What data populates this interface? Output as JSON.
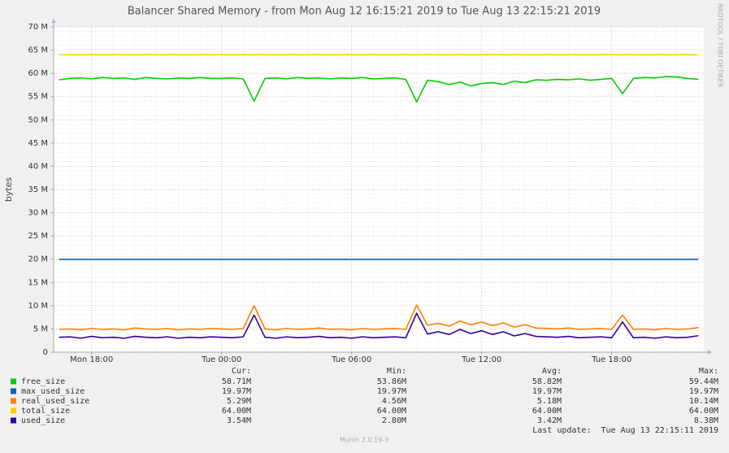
{
  "chart_data": {
    "type": "line",
    "title": "Balancer Shared Memory - from Mon Aug 12 16:15:21 2019 to Tue Aug 13 22:15:21 2019",
    "y_label": "bytes",
    "side_text": "RRDTOOL / TOBI OETIKER",
    "xlim": [
      "Mon 16:15",
      "Tue 22:15"
    ],
    "xticks": [
      "Mon 18:00",
      "Tue 00:00",
      "Tue 06:00",
      "Tue 12:00",
      "Tue 18:00"
    ],
    "ylim": [
      0,
      70
    ],
    "yticks": [
      0,
      {
        "value": 5,
        "label": "5 M"
      },
      {
        "value": 10,
        "label": "10 M"
      },
      {
        "value": 15,
        "label": "15 M"
      },
      {
        "value": 20,
        "label": "20 M"
      },
      {
        "value": 25,
        "label": "25 M"
      },
      {
        "value": 30,
        "label": "30 M"
      },
      {
        "value": 35,
        "label": "35 M"
      },
      {
        "value": 40,
        "label": "40 M"
      },
      {
        "value": 45,
        "label": "45 M"
      },
      {
        "value": 50,
        "label": "50 M"
      },
      {
        "value": 55,
        "label": "55 M"
      },
      {
        "value": 60,
        "label": "60 M"
      },
      {
        "value": 65,
        "label": "65 M"
      },
      {
        "value": 70,
        "label": "70 M"
      }
    ],
    "grid": true,
    "x": [
      "Mon 16:30",
      "Mon 17:00",
      "Mon 17:30",
      "Mon 18:00",
      "Mon 18:30",
      "Mon 19:00",
      "Mon 19:30",
      "Mon 20:00",
      "Mon 20:30",
      "Mon 21:00",
      "Mon 21:30",
      "Mon 22:00",
      "Mon 22:30",
      "Mon 23:00",
      "Mon 23:30",
      "Tue 00:00",
      "Tue 00:30",
      "Tue 01:00",
      "Tue 01:30",
      "Tue 02:00",
      "Tue 02:30",
      "Tue 03:00",
      "Tue 03:30",
      "Tue 04:00",
      "Tue 04:30",
      "Tue 05:00",
      "Tue 05:30",
      "Tue 06:00",
      "Tue 06:30",
      "Tue 07:00",
      "Tue 07:30",
      "Tue 08:00",
      "Tue 08:30",
      "Tue 09:00",
      "Tue 09:30",
      "Tue 10:00",
      "Tue 10:30",
      "Tue 11:00",
      "Tue 11:30",
      "Tue 12:00",
      "Tue 12:30",
      "Tue 13:00",
      "Tue 13:30",
      "Tue 14:00",
      "Tue 14:30",
      "Tue 15:00",
      "Tue 15:30",
      "Tue 16:00",
      "Tue 16:30",
      "Tue 17:00",
      "Tue 17:30",
      "Tue 18:00",
      "Tue 18:30",
      "Tue 19:00",
      "Tue 19:30",
      "Tue 20:00",
      "Tue 20:30",
      "Tue 21:00",
      "Tue 21:30",
      "Tue 22:00"
    ],
    "stat_headers": [
      "Cur:",
      "Min:",
      "Avg:",
      "Max:"
    ],
    "series": [
      {
        "name": "free_size",
        "color": "#00cc00",
        "stats": [
          "58.71M",
          "53.86M",
          "58.82M",
          "59.44M"
        ],
        "values": [
          58.6,
          58.9,
          59.0,
          58.8,
          59.1,
          58.9,
          59.0,
          58.7,
          59.1,
          58.9,
          58.8,
          59.0,
          58.9,
          59.1,
          58.9,
          58.9,
          59.0,
          58.8,
          54.0,
          58.9,
          59.0,
          58.8,
          59.1,
          58.9,
          59.0,
          58.8,
          59.0,
          58.9,
          59.1,
          58.8,
          58.9,
          59.0,
          58.7,
          53.86,
          58.5,
          58.2,
          57.6,
          58.1,
          57.3,
          57.8,
          58.0,
          57.6,
          58.3,
          58.0,
          58.6,
          58.5,
          58.7,
          58.6,
          58.8,
          58.5,
          58.7,
          58.9,
          55.6,
          58.9,
          59.1,
          59.0,
          59.3,
          59.2,
          58.9,
          58.71
        ]
      },
      {
        "name": "max_used_size",
        "color": "#0066b3",
        "stats": [
          "19.97M",
          "19.97M",
          "19.97M",
          "19.97M"
        ],
        "values": [
          19.97,
          19.97,
          19.97,
          19.97,
          19.97,
          19.97,
          19.97,
          19.97,
          19.97,
          19.97,
          19.97,
          19.97,
          19.97,
          19.97,
          19.97,
          19.97,
          19.97,
          19.97,
          19.97,
          19.97,
          19.97,
          19.97,
          19.97,
          19.97,
          19.97,
          19.97,
          19.97,
          19.97,
          19.97,
          19.97,
          19.97,
          19.97,
          19.97,
          19.97,
          19.97,
          19.97,
          19.97,
          19.97,
          19.97,
          19.97,
          19.97,
          19.97,
          19.97,
          19.97,
          19.97,
          19.97,
          19.97,
          19.97,
          19.97,
          19.97,
          19.97,
          19.97,
          19.97,
          19.97,
          19.97,
          19.97,
          19.97,
          19.97,
          19.97,
          19.97
        ]
      },
      {
        "name": "real_used_size",
        "color": "#ff8000",
        "stats": [
          "5.29M",
          "4.56M",
          "5.18M",
          "10.14M"
        ],
        "values": [
          4.9,
          5.0,
          4.8,
          5.1,
          4.9,
          5.0,
          4.8,
          5.2,
          5.0,
          4.9,
          5.1,
          4.8,
          5.0,
          4.9,
          5.1,
          5.0,
          4.9,
          5.1,
          10.0,
          5.0,
          4.8,
          5.1,
          4.9,
          5.0,
          5.2,
          4.9,
          5.0,
          4.8,
          5.1,
          4.9,
          5.0,
          5.1,
          4.9,
          10.14,
          5.8,
          6.2,
          5.6,
          6.7,
          5.9,
          6.5,
          5.7,
          6.3,
          5.4,
          5.9,
          5.2,
          5.1,
          5.0,
          5.2,
          4.9,
          5.0,
          5.1,
          4.9,
          8.0,
          4.9,
          5.0,
          4.8,
          5.1,
          4.9,
          5.0,
          5.29
        ]
      },
      {
        "name": "total_size",
        "color": "#ffcc00",
        "stats": [
          "64.00M",
          "64.00M",
          "64.00M",
          "64.00M"
        ],
        "values": [
          64,
          64,
          64,
          64,
          64,
          64,
          64,
          64,
          64,
          64,
          64,
          64,
          64,
          64,
          64,
          64,
          64,
          64,
          64,
          64,
          64,
          64,
          64,
          64,
          64,
          64,
          64,
          64,
          64,
          64,
          64,
          64,
          64,
          64,
          64,
          64,
          64,
          64,
          64,
          64,
          64,
          64,
          64,
          64,
          64,
          64,
          64,
          64,
          64,
          64,
          64,
          64,
          64,
          64,
          64,
          64,
          64,
          64,
          64,
          64
        ]
      },
      {
        "name": "used_size",
        "color": "#330099",
        "stats": [
          "3.54M",
          "2.80M",
          "3.42M",
          "8.38M"
        ],
        "values": [
          3.2,
          3.3,
          3.0,
          3.4,
          3.1,
          3.2,
          3.0,
          3.4,
          3.2,
          3.1,
          3.3,
          3.0,
          3.2,
          3.1,
          3.3,
          3.2,
          3.1,
          3.3,
          8.0,
          3.2,
          3.0,
          3.3,
          3.1,
          3.2,
          3.4,
          3.1,
          3.2,
          3.0,
          3.3,
          3.1,
          3.2,
          3.3,
          3.1,
          8.38,
          3.9,
          4.4,
          3.8,
          4.9,
          4.0,
          4.6,
          3.8,
          4.4,
          3.5,
          4.0,
          3.4,
          3.3,
          3.2,
          3.4,
          3.1,
          3.2,
          3.3,
          3.1,
          6.5,
          3.1,
          3.2,
          3.0,
          3.3,
          3.1,
          3.2,
          3.54
        ]
      }
    ],
    "last_update": "Last update:  Tue Aug 13 22:15:11 2019",
    "footer": "Munin 2.0.19-3"
  }
}
